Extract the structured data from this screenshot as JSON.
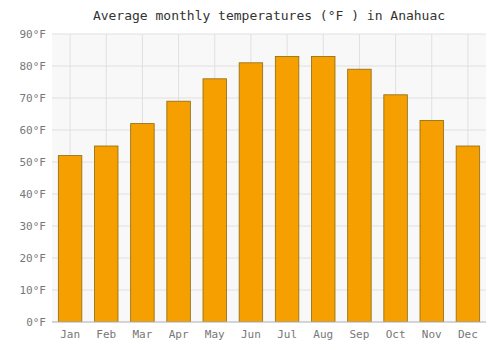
{
  "chart_data": {
    "type": "bar",
    "title": "Average monthly temperatures (°F ) in Anahuac",
    "categories": [
      "Jan",
      "Feb",
      "Mar",
      "Apr",
      "May",
      "Jun",
      "Jul",
      "Aug",
      "Sep",
      "Oct",
      "Nov",
      "Dec"
    ],
    "values": [
      52,
      55,
      62,
      69,
      76,
      81,
      83,
      83,
      79,
      71,
      63,
      55
    ],
    "color": "#F5A000",
    "ylim": [
      0,
      90
    ],
    "yticks": [
      {
        "value": 0,
        "label": "0°F"
      },
      {
        "value": 10,
        "label": "10°F"
      },
      {
        "value": 20,
        "label": "20°F"
      },
      {
        "value": 30,
        "label": "30°F"
      },
      {
        "value": 40,
        "label": "40°F"
      },
      {
        "value": 50,
        "label": "50°F"
      },
      {
        "value": 60,
        "label": "60°F"
      },
      {
        "value": 70,
        "label": "70°F"
      },
      {
        "value": 80,
        "label": "80°F"
      },
      {
        "value": 90,
        "label": "90°F"
      }
    ],
    "grid": true
  }
}
